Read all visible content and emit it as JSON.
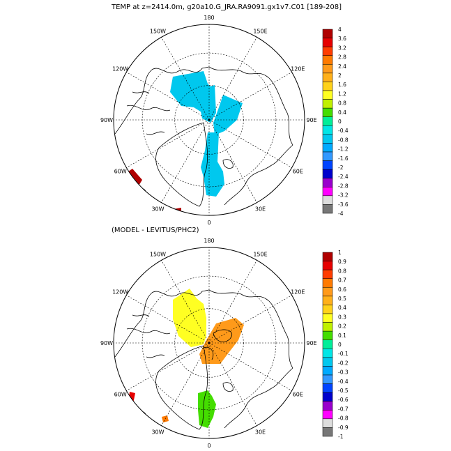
{
  "titles": {
    "top": "TEMP at z=2414.0m, g20a10.G_JRA.RA9091.gx1v7.C01 [189-208]",
    "bottom": "(MODEL - LEVITUS/PHC2)"
  },
  "longitude_labels": [
    "180",
    "150E",
    "120E",
    "90E",
    "60E",
    "30E",
    "0",
    "30W",
    "60W",
    "90W",
    "120W",
    "150W"
  ],
  "maps": [
    {
      "id": "temp",
      "colorbar": {
        "labels": [
          "4",
          "3.6",
          "3.2",
          "2.8",
          "2.4",
          "2",
          "1.6",
          "1.2",
          "0.8",
          "0.4",
          "0",
          "-0.4",
          "-0.8",
          "-1.2",
          "-1.6",
          "-2",
          "-2.4",
          "-2.8",
          "-3.2",
          "-3.6",
          "-4"
        ],
        "colors": [
          "#b00000",
          "#e60000",
          "#ff3c00",
          "#ff7a00",
          "#ff9a1a",
          "#ffb01a",
          "#ffd21a",
          "#ffff22",
          "#c0f000",
          "#44dd00",
          "#00ee99",
          "#00e6e6",
          "#00c8ee",
          "#00aaff",
          "#3399ff",
          "#0044ff",
          "#0000cc",
          "#9900cc",
          "#ff00ff",
          "#dddddd",
          "#777777"
        ]
      }
    },
    {
      "id": "diff",
      "colorbar": {
        "labels": [
          "1",
          "0.9",
          "0.8",
          "0.7",
          "0.6",
          "0.5",
          "0.4",
          "0.3",
          "0.2",
          "0.1",
          "0",
          "-0.1",
          "-0.2",
          "-0.3",
          "-0.4",
          "-0.5",
          "-0.6",
          "-0.7",
          "-0.8",
          "-0.9",
          "-1"
        ],
        "colors": [
          "#b00000",
          "#e60000",
          "#ff3c00",
          "#ff7a00",
          "#ff9a1a",
          "#ffb01a",
          "#ffd21a",
          "#ffff22",
          "#c0f000",
          "#44dd00",
          "#00ee99",
          "#00e6e6",
          "#00c8ee",
          "#00aaff",
          "#3399ff",
          "#0044ff",
          "#0000cc",
          "#9900cc",
          "#ff00ff",
          "#dddddd",
          "#777777"
        ]
      }
    }
  ]
}
